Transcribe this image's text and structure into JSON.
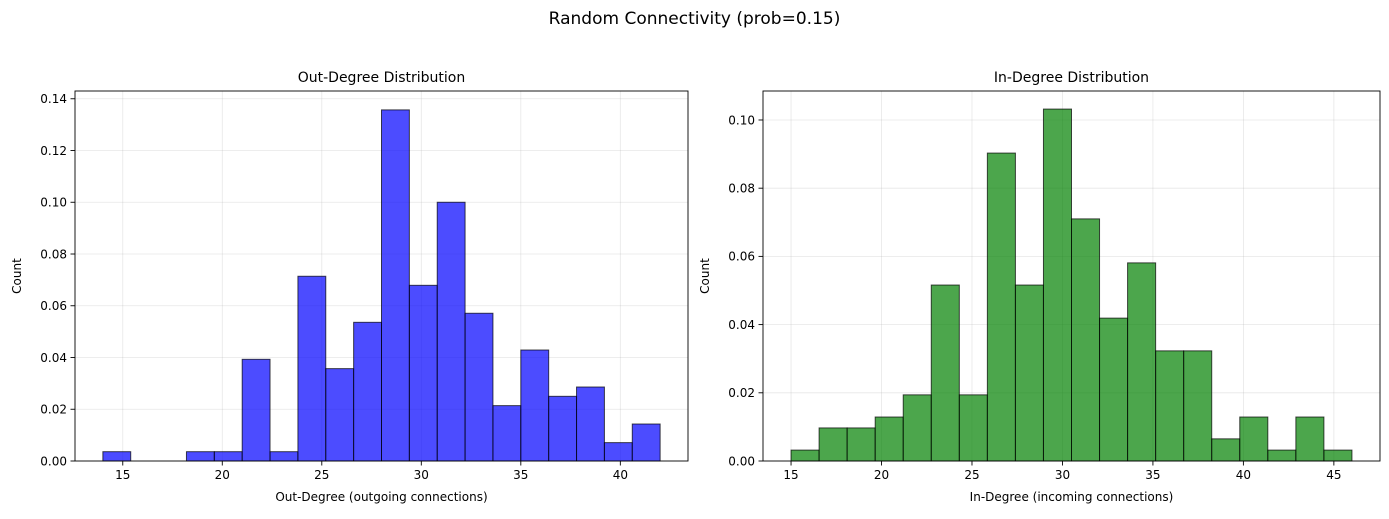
{
  "suptitle": "Random Connectivity (prob=0.15)",
  "chart_data": [
    {
      "type": "bar",
      "subtype": "histogram",
      "title": "Out-Degree Distribution",
      "xlabel": "Out-Degree (outgoing connections)",
      "ylabel": "Count",
      "xlim": [
        12.6,
        43.4
      ],
      "ylim": [
        0,
        0.143
      ],
      "xticks": [
        15,
        20,
        25,
        30,
        35,
        40
      ],
      "yticks": [
        0.0,
        0.02,
        0.04,
        0.06,
        0.08,
        0.1,
        0.12,
        0.14
      ],
      "ytick_labels": [
        "0.00",
        "0.02",
        "0.04",
        "0.06",
        "0.08",
        "0.10",
        "0.12",
        "0.14"
      ],
      "bin_edges": [
        14.0,
        15.4,
        16.8,
        18.2,
        19.6,
        21.0,
        22.4,
        23.8,
        25.2,
        26.6,
        28.0,
        29.4,
        30.8,
        32.2,
        33.6,
        35.0,
        36.4,
        37.8,
        39.2,
        40.6,
        42.0
      ],
      "values": [
        0.0036,
        0,
        0,
        0.0036,
        0.0036,
        0.0393,
        0.0036,
        0.0714,
        0.0357,
        0.0536,
        0.1357,
        0.0679,
        0.1,
        0.0571,
        0.0214,
        0.0429,
        0.025,
        0.0286,
        0.0071,
        0.0143
      ],
      "bar_color": "#0000ff",
      "bar_opacity": 0.7,
      "edge_color": "#000000",
      "grid": true
    },
    {
      "type": "bar",
      "subtype": "histogram",
      "title": "In-Degree Distribution",
      "xlabel": "In-Degree (incoming connections)",
      "ylabel": "Count",
      "xlim": [
        13.45,
        47.55
      ],
      "ylim": [
        0,
        0.1085
      ],
      "xticks": [
        15,
        20,
        25,
        30,
        35,
        40,
        45
      ],
      "yticks": [
        0.0,
        0.02,
        0.04,
        0.06,
        0.08,
        0.1
      ],
      "ytick_labels": [
        "0.00",
        "0.02",
        "0.04",
        "0.06",
        "0.08",
        "0.10"
      ],
      "bin_edges": [
        15.0,
        16.55,
        18.1,
        19.65,
        21.2,
        22.75,
        24.3,
        25.85,
        27.4,
        28.95,
        30.5,
        32.05,
        33.6,
        35.15,
        36.7,
        38.25,
        39.8,
        41.35,
        42.9,
        44.45,
        46.0
      ],
      "values": [
        0.0032,
        0.0097,
        0.0097,
        0.0129,
        0.0194,
        0.0516,
        0.0194,
        0.0903,
        0.0516,
        0.1032,
        0.071,
        0.0419,
        0.0581,
        0.0323,
        0.0323,
        0.0065,
        0.0129,
        0.0032,
        0.0129,
        0.0032
      ],
      "bar_color": "#008000",
      "bar_opacity": 0.7,
      "edge_color": "#000000",
      "grid": true
    }
  ]
}
